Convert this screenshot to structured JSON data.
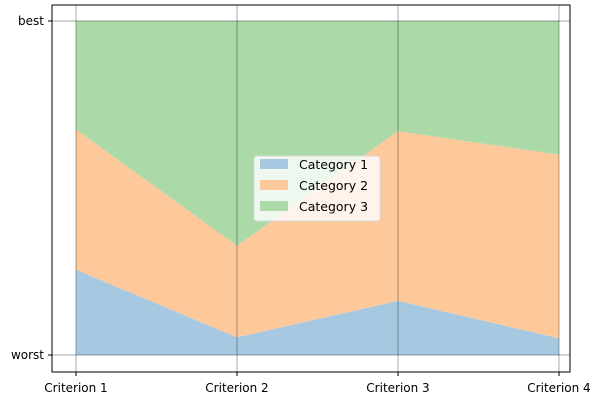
{
  "chart_data": {
    "type": "area",
    "stacked": true,
    "categories": [
      "Criterion 1",
      "Criterion 2",
      "Criterion 3",
      "Criterion 4"
    ],
    "y_tick_labels": [
      "worst",
      "best"
    ],
    "ylim": [
      0,
      1
    ],
    "grid": true,
    "legend_position": "center",
    "series": [
      {
        "name": "Category 1",
        "values": [
          0.255,
          0.053,
          0.162,
          0.05
        ],
        "color": "#a6c8e0"
      },
      {
        "name": "Category 2",
        "values": [
          0.42,
          0.274,
          0.508,
          0.55
        ],
        "color": "#fdc99a"
      },
      {
        "name": "Category 3",
        "values": [
          0.325,
          0.673,
          0.33,
          0.4
        ],
        "color": "#acd9a8"
      }
    ]
  }
}
